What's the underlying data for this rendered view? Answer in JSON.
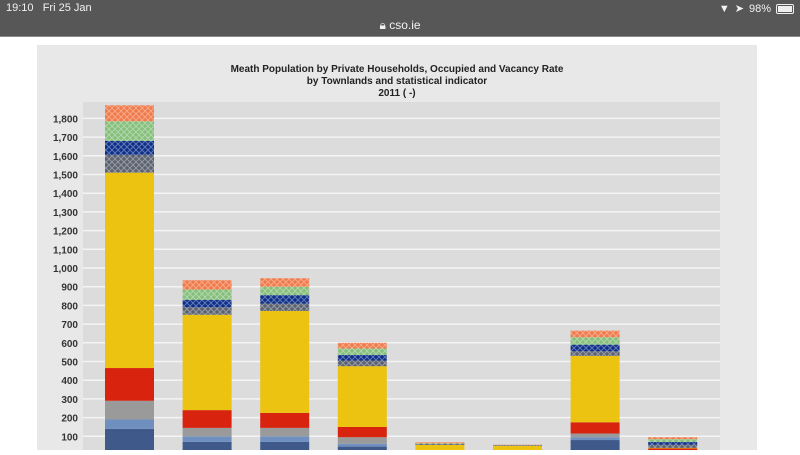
{
  "status_bar": {
    "time": "19:10",
    "date": "Fri 25 Jan",
    "battery": "98%",
    "battery_level": 0.98
  },
  "browser": {
    "url": "cso.ie"
  },
  "chart_data": {
    "type": "bar",
    "stacked": true,
    "title": [
      "Meath Population by Private Households, Occupied and Vacancy Rate",
      "by Townlands and statistical indicator",
      "2011 ( -)"
    ],
    "xlabel": "",
    "ylabel": "",
    "ylim": [
      0,
      1880
    ],
    "yticks": [
      100,
      200,
      300,
      400,
      500,
      600,
      700,
      800,
      900,
      1000,
      1100,
      1200,
      1300,
      1400,
      1500,
      1600,
      1700,
      1800
    ],
    "ytick_labels": [
      "100",
      "200",
      "300",
      "400",
      "500",
      "600",
      "700",
      "800",
      "900",
      "1,000",
      "1,100",
      "1,200",
      "1,300",
      "1,400",
      "1,500",
      "1,600",
      "1,700",
      "1,800"
    ],
    "grid": true,
    "n_categories": 8,
    "series": [
      {
        "color": "#3f5a8a",
        "pattern": "solid",
        "values": [
          140,
          70,
          70,
          45,
          0,
          0,
          80,
          15
        ]
      },
      {
        "color": "#6f8fbf",
        "pattern": "solid",
        "values": [
          50,
          30,
          30,
          15,
          0,
          0,
          15,
          5
        ]
      },
      {
        "color": "#9a9a9a",
        "pattern": "solid",
        "values": [
          100,
          45,
          45,
          35,
          0,
          0,
          20,
          5
        ]
      },
      {
        "color": "#d8230f",
        "pattern": "solid",
        "values": [
          175,
          95,
          80,
          55,
          5,
          0,
          60,
          10
        ]
      },
      {
        "color": "#ecc311",
        "pattern": "solid",
        "values": [
          1045,
          510,
          545,
          325,
          50,
          50,
          355,
          3
        ]
      },
      {
        "color": "#5c6270",
        "pattern": "hatch",
        "values": [
          95,
          40,
          40,
          30,
          2,
          1,
          25,
          17
        ]
      },
      {
        "color": "#0d2f8a",
        "pattern": "hatch",
        "values": [
          75,
          40,
          45,
          30,
          1,
          1,
          35,
          15
        ]
      },
      {
        "color": "#86bf7c",
        "pattern": "hatch",
        "values": [
          105,
          55,
          45,
          35,
          4,
          1,
          40,
          15
        ]
      },
      {
        "color": "#f07a4a",
        "pattern": "hatch",
        "values": [
          85,
          50,
          45,
          30,
          6,
          2,
          35,
          10
        ]
      }
    ]
  }
}
